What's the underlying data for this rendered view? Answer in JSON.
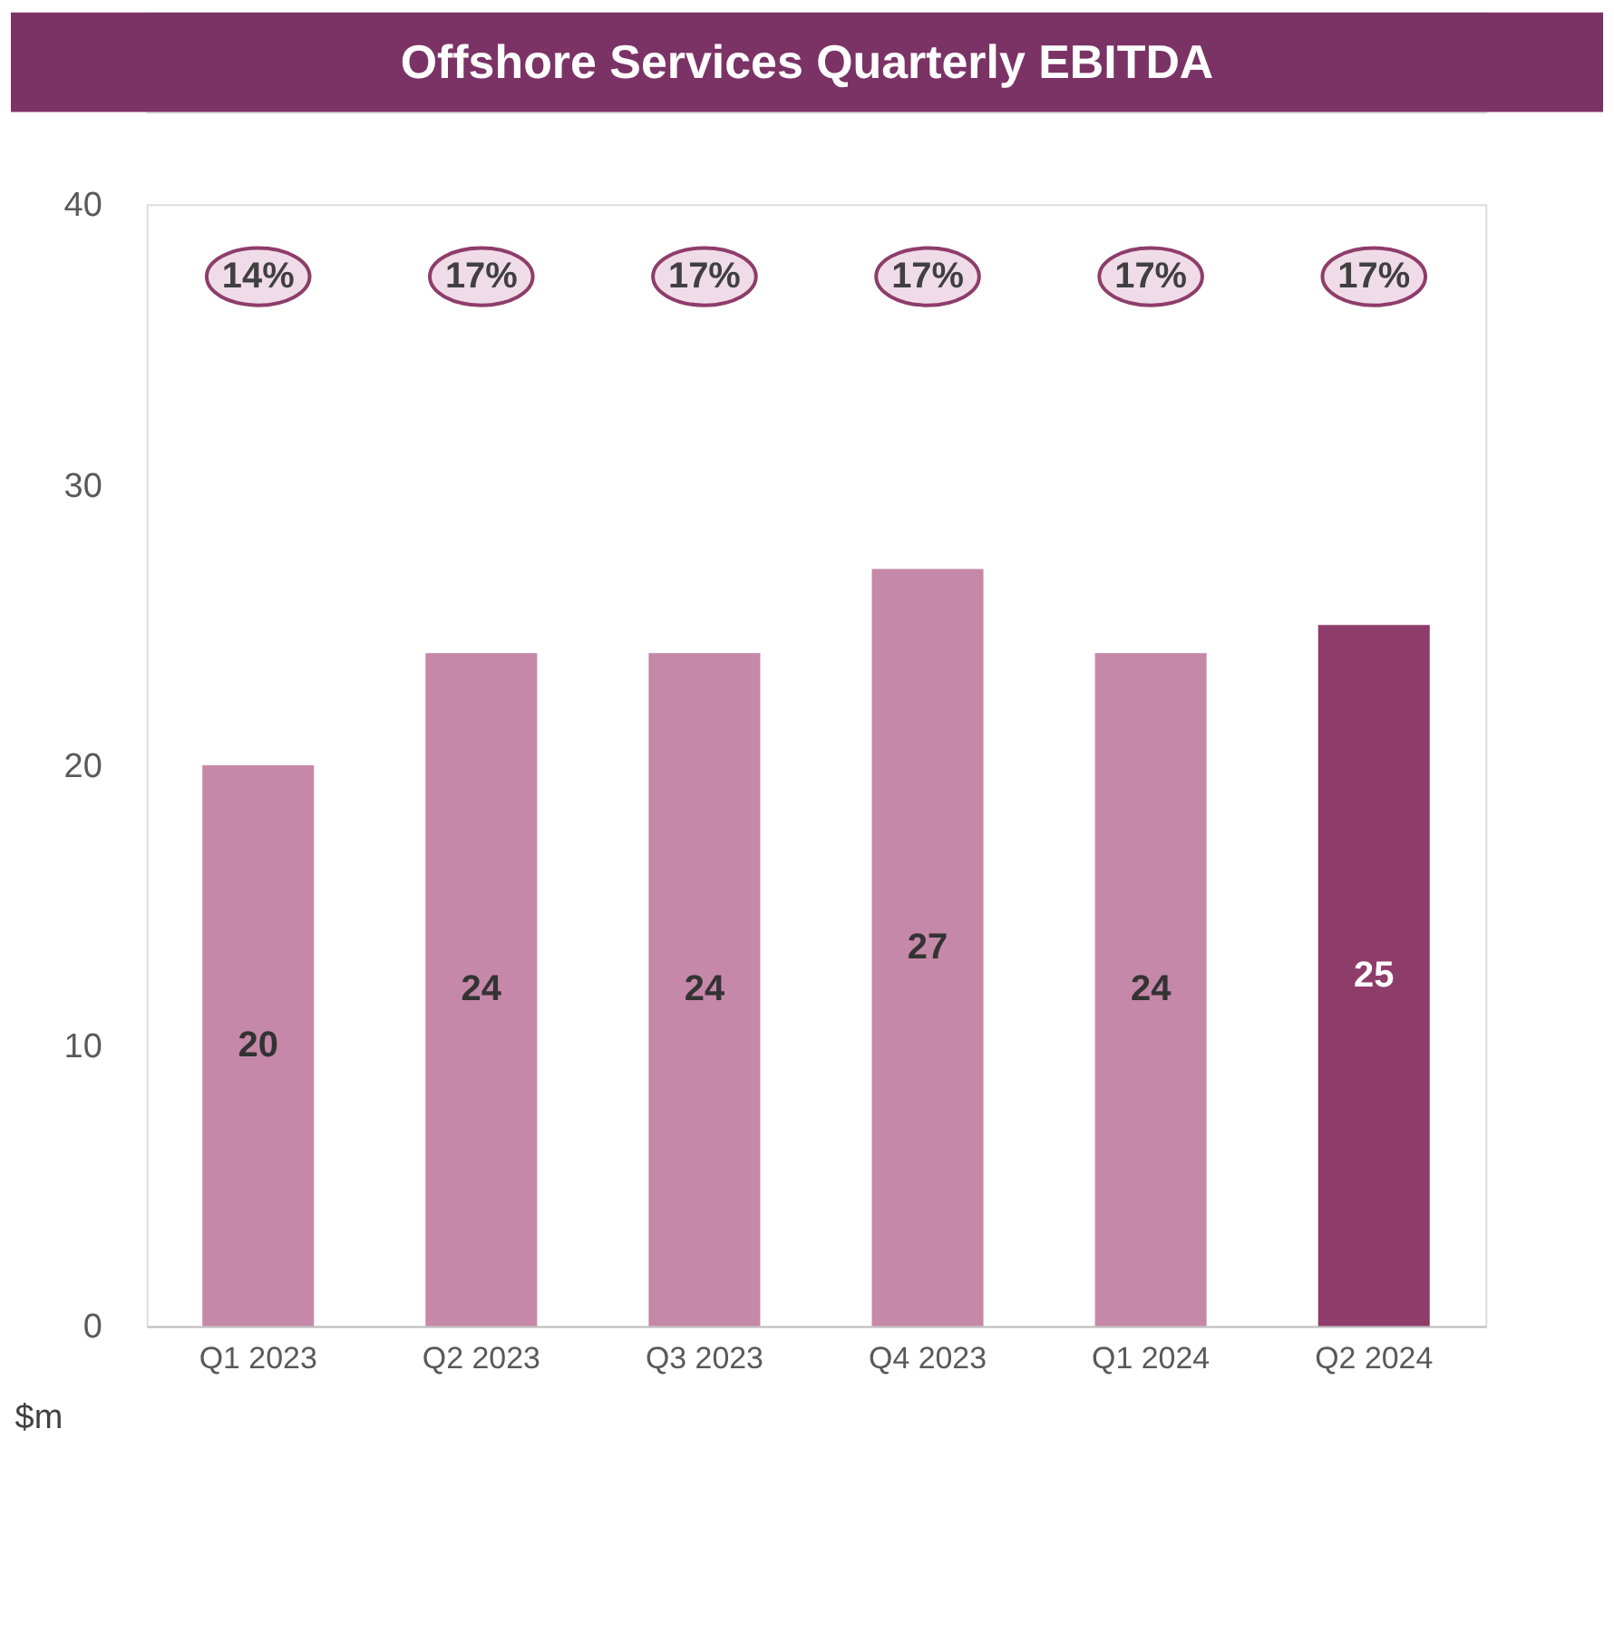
{
  "chart_data": {
    "type": "bar",
    "title": "Offshore Services Quarterly EBITDA",
    "ylabel": "$m",
    "categories": [
      "Q1 2023",
      "Q2 2023",
      "Q3 2023",
      "Q4 2023",
      "Q1 2024",
      "Q2 2024"
    ],
    "values": [
      20,
      24,
      24,
      27,
      24,
      25
    ],
    "colors": [
      "#c688a8",
      "#c688a8",
      "#c688a8",
      "#c688a8",
      "#c688a8",
      "#8e3d6a"
    ],
    "ylim": [
      0,
      40
    ],
    "yticks": [
      0,
      10,
      20,
      30,
      40
    ],
    "grid": false,
    "data_labels": true,
    "annotations": [
      "14%",
      "17%",
      "17%",
      "17%",
      "17%",
      "17%"
    ]
  }
}
